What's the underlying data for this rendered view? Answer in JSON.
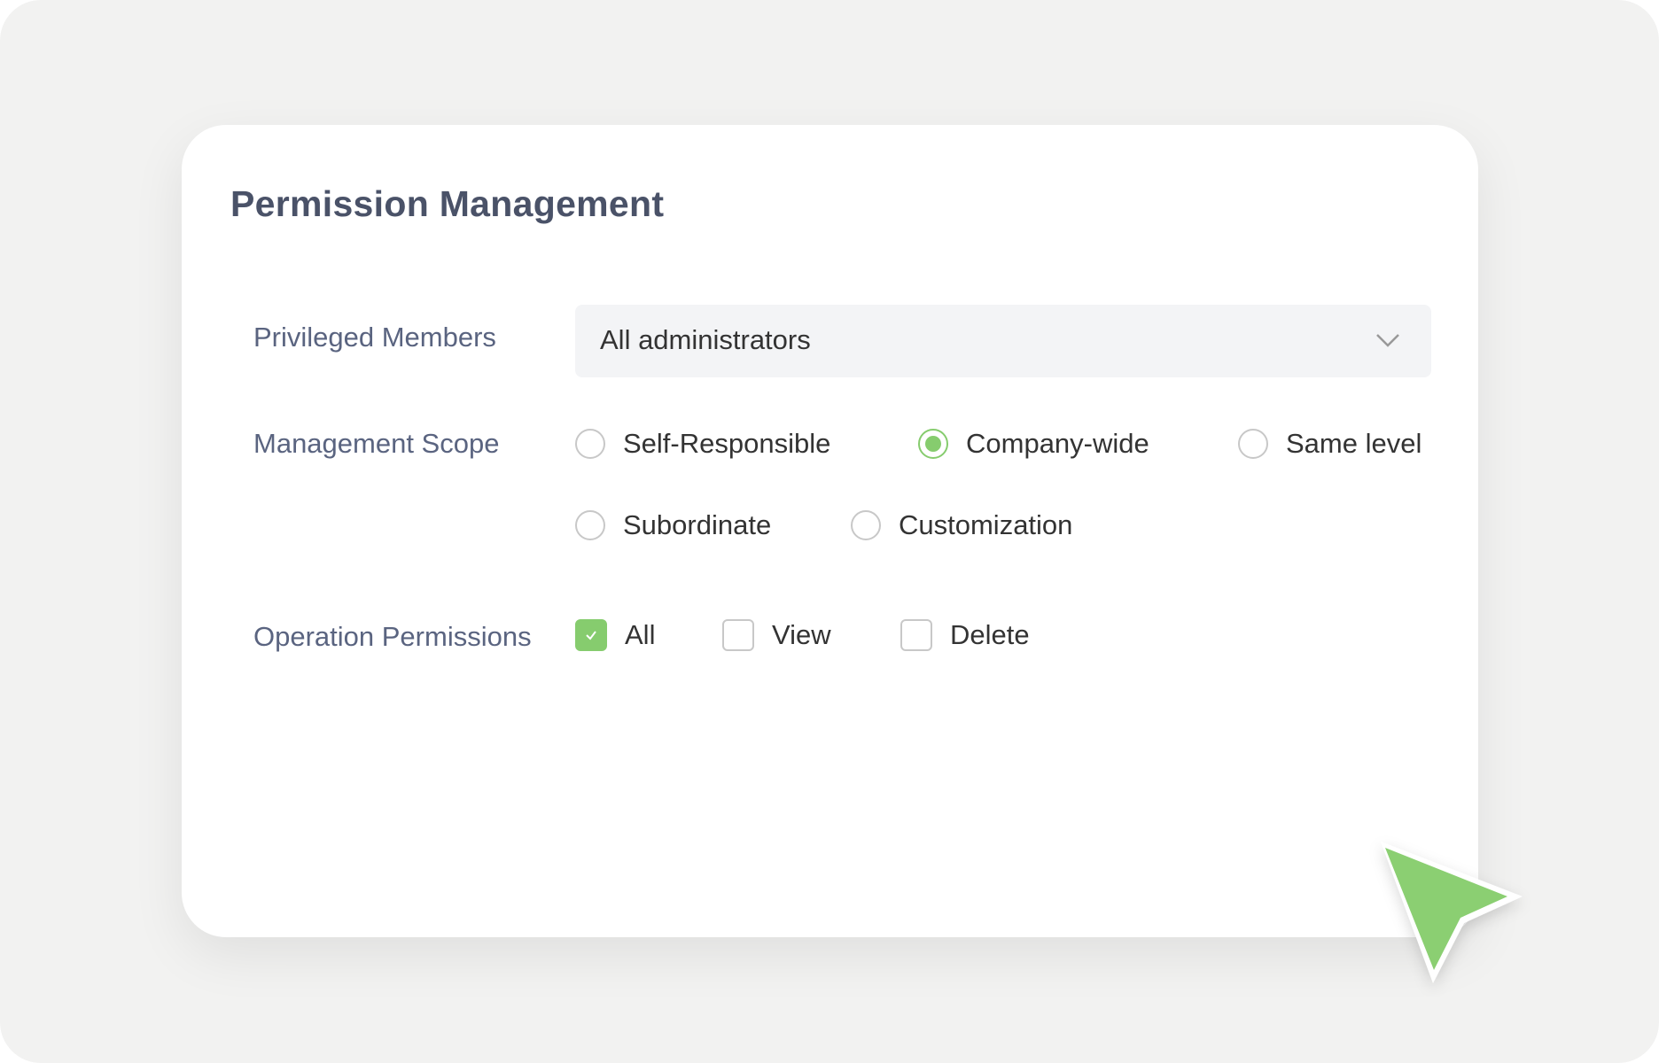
{
  "title": "Permission Management",
  "accent_color": "#86cc6e",
  "privileged_members": {
    "label": "Privileged Members",
    "value": "All administrators",
    "icon": "chevron-down-icon"
  },
  "management_scope": {
    "label": "Management Scope",
    "options": [
      {
        "label": "Self-Responsible",
        "selected": false
      },
      {
        "label": "Company-wide",
        "selected": true
      },
      {
        "label": "Same level",
        "selected": false
      },
      {
        "label": "Subordinate",
        "selected": false
      },
      {
        "label": "Customization",
        "selected": false
      }
    ]
  },
  "operation_permissions": {
    "label": "Operation Permissions",
    "options": [
      {
        "label": "All",
        "checked": true
      },
      {
        "label": "View",
        "checked": false
      },
      {
        "label": "Delete",
        "checked": false
      }
    ]
  },
  "cursor": {
    "icon": "pointer-cursor-icon"
  }
}
